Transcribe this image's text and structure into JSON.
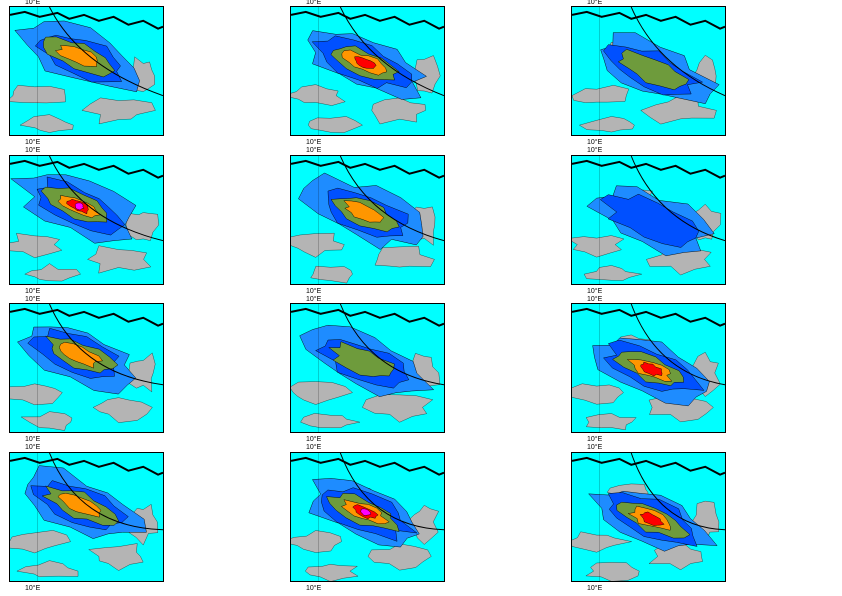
{
  "map_grid": {
    "rows": 4,
    "cols": 3,
    "longitude_label": "10°E",
    "colors": {
      "ocean_background": "#00ffff",
      "land_gray": "#b4b4b4",
      "light_blue": "#1e8cff",
      "medium_blue": "#0050ff",
      "olive_green": "#6e9b3c",
      "orange": "#ff9600",
      "red": "#ff0000",
      "magenta": "#ff00ff",
      "coastline": "#000000"
    },
    "panels": [
      {
        "intensity_levels": 3
      },
      {
        "intensity_levels": 4
      },
      {
        "intensity_levels": 2
      },
      {
        "intensity_levels": 5
      },
      {
        "intensity_levels": 3
      },
      {
        "intensity_levels": 1
      },
      {
        "intensity_levels": 3
      },
      {
        "intensity_levels": 2
      },
      {
        "intensity_levels": 4
      },
      {
        "intensity_levels": 3
      },
      {
        "intensity_levels": 5
      },
      {
        "intensity_levels": 4
      }
    ]
  }
}
